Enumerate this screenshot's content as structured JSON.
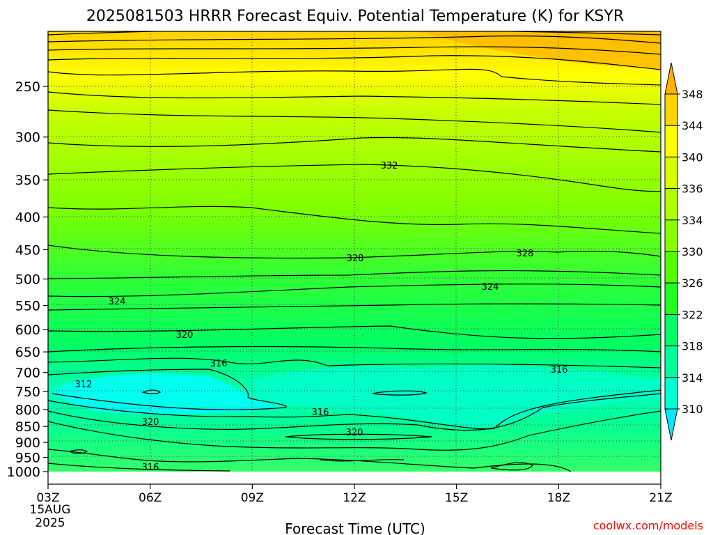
{
  "chart_data": {
    "type": "heatmap",
    "title": "2025081503 HRRR Forecast Equiv. Potential Temperature (K) for KSYR",
    "xlabel": "Forecast Time (UTC)",
    "ylabel": "",
    "x_ticks": [
      "03Z",
      "06Z",
      "09Z",
      "12Z",
      "15Z",
      "18Z",
      "21Z"
    ],
    "x_start_date": [
      "15AUG",
      "2025"
    ],
    "y_ticks": [
      250,
      300,
      350,
      400,
      450,
      500,
      550,
      600,
      650,
      700,
      750,
      800,
      850,
      900,
      950,
      1000
    ],
    "y_scale": "log-pressure",
    "colorbar_labels": [
      310,
      314,
      318,
      322,
      326,
      330,
      334,
      336,
      340,
      344,
      348
    ],
    "contour_labels": [
      "332",
      "328",
      "328",
      "324",
      "324",
      "320",
      "316",
      "316",
      "312",
      "316",
      "320",
      "320"
    ],
    "grid": "dotted",
    "credit": "coolwx.com/models",
    "colors": {
      "cyan": "#00ffff",
      "green": "#00ff00",
      "yellow_green": "#aaff00",
      "yellow": "#ffff00",
      "orange": "#ffaa00",
      "ground": "#a0522d",
      "credit": "#ff0000"
    }
  }
}
